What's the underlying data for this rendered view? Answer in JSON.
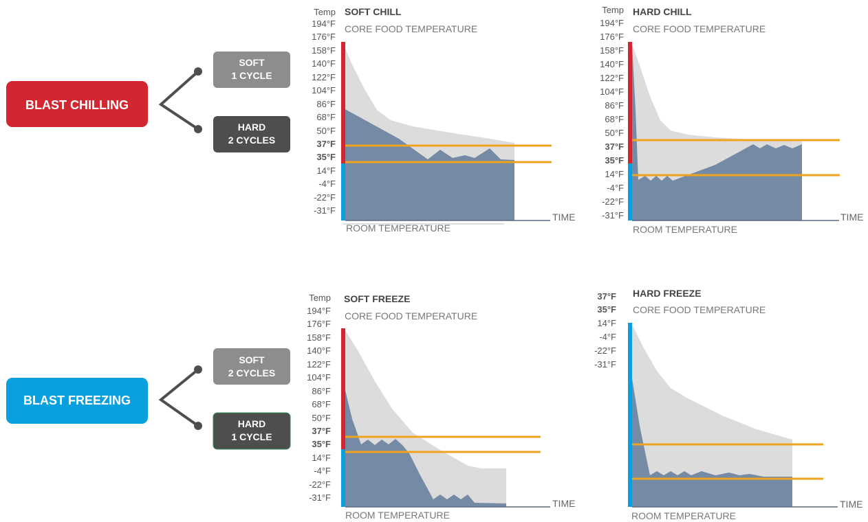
{
  "groups": [
    {
      "id": "chilling",
      "label": "BLAST CHILLING",
      "color": "#d22630",
      "options": [
        {
          "line1": "SOFT",
          "line2": "1 CYCLE",
          "color": "#8f8d8c"
        },
        {
          "line1": "HARD",
          "line2": "2 CYCLES",
          "color": "#4e4e4c"
        }
      ]
    },
    {
      "id": "freezing",
      "label": "BLAST FREEZING",
      "color": "#0aa0e0",
      "options": [
        {
          "line1": "SOFT",
          "line2": "2 CYCLES",
          "color": "#8f8d8c"
        },
        {
          "line1": "HARD",
          "line2": "1 CYCLE",
          "color": "#4e4e4c"
        }
      ]
    }
  ],
  "colors": {
    "hot": "#d22630",
    "cold": "#0aa0e0",
    "air": "#dcdcdc",
    "core": "#758aa5",
    "limit": "#f0a31c",
    "axis": "#5a6a82"
  },
  "labels": {
    "temp": "Temp",
    "subtitle": "CORE FOOD TEMPERATURE",
    "room": "ROOM TEMPERATURE",
    "time": "TIME"
  },
  "temp_ticks": [
    "194°F",
    "176°F",
    "158°F",
    "140°F",
    "122°F",
    "104°F",
    "86°F",
    "68°F",
    "50°F",
    "37°F",
    "35°F",
    "14°F",
    "-4°F",
    "-22°F",
    "-31°F"
  ],
  "freeze_ticks": [
    "37°F",
    "35°F",
    "14°F",
    "-4°F",
    "-22°F",
    "-31°F"
  ],
  "chart_data": [
    {
      "type": "area",
      "title": "SOFT CHILL",
      "show_temp": true,
      "limit_lines": [
        "37°F",
        "35°F"
      ]
    },
    {
      "type": "area",
      "title": "HARD CHILL",
      "show_temp": true,
      "limit_lines": [
        "37°F",
        "14°F"
      ]
    },
    {
      "type": "area",
      "title": "SOFT FREEZE",
      "show_temp": true,
      "limit_lines": [
        "37°F",
        "35°F"
      ]
    },
    {
      "type": "area",
      "title": "HARD FREEZE",
      "show_temp": false,
      "limit_lines": [
        "37°F",
        "35°F"
      ]
    }
  ]
}
